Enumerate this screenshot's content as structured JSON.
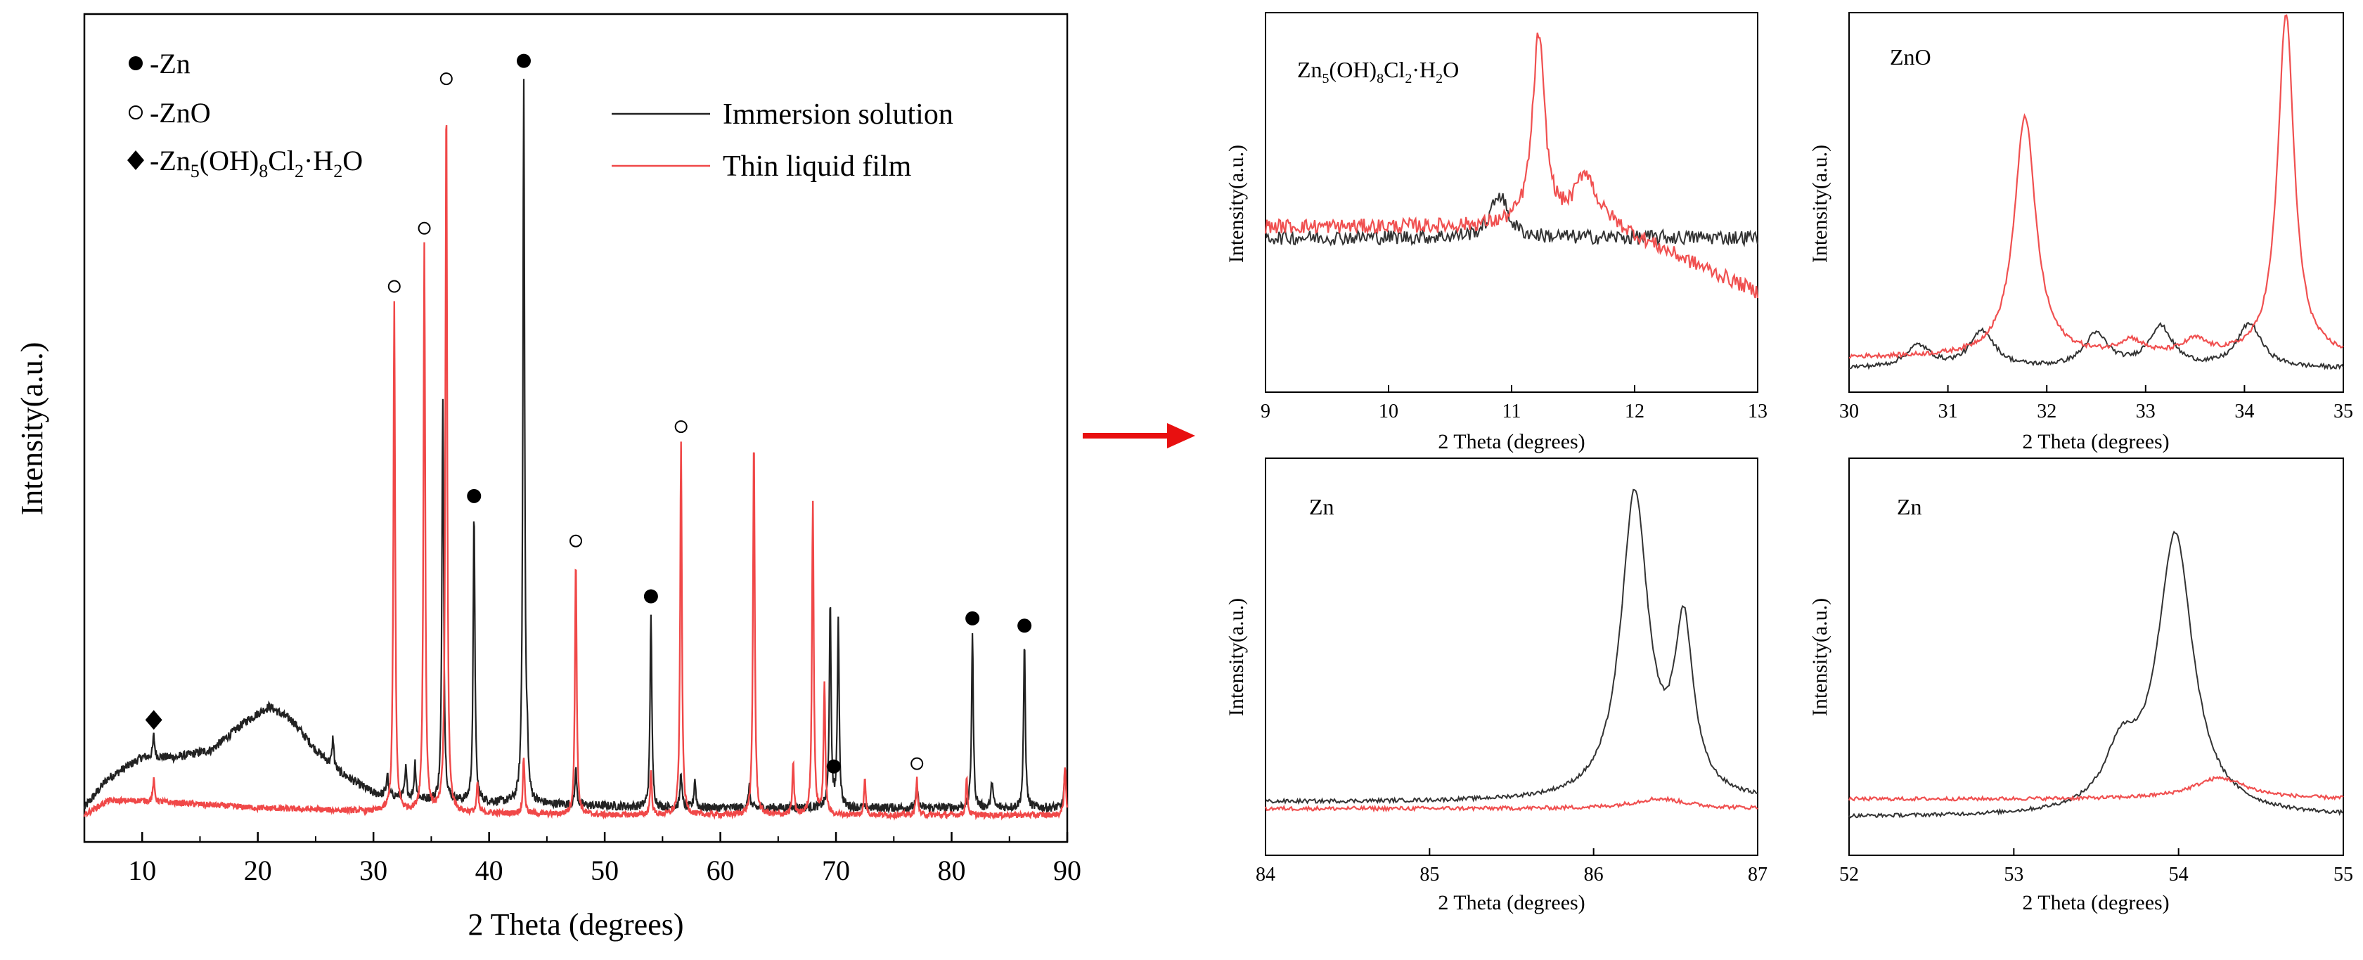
{
  "figure": {
    "arrow_color": "#e81010",
    "series_colors": {
      "immersion": "#222222",
      "film": "#f04848"
    }
  },
  "main": {
    "xlabel": "2 Theta (degrees)",
    "ylabel": "Intensity(a.u.)",
    "xlim": [
      5,
      90
    ],
    "xticks": [
      "10",
      "20",
      "30",
      "40",
      "50",
      "60",
      "70",
      "80",
      "90"
    ],
    "legend": [
      {
        "name": "Immersion solution",
        "color": "#222222"
      },
      {
        "name": "Thin liquid film",
        "color": "#f04848"
      }
    ],
    "marker_legend": [
      {
        "symbol": "filled-circle",
        "label": "-Zn"
      },
      {
        "symbol": "open-circle",
        "label": "-ZnO"
      },
      {
        "symbol": "diamond",
        "label_prefix": "-Zn",
        "label_sub1": "5",
        "label_mid": "(OH)",
        "label_sub2": "8",
        "label_mid2": "Cl",
        "label_sub3": "2",
        "label_suffix": "·H",
        "label_sub4": "2",
        "label_end": "O"
      }
    ]
  },
  "panels": {
    "p1": {
      "title_prefix": "Zn",
      "title_sub1": "5",
      "title_mid": "(OH)",
      "title_sub2": "8",
      "title_mid2": "Cl",
      "title_sub3": "2",
      "title_suffix": "·H",
      "title_sub4": "2",
      "title_end": "O",
      "xlabel": "2 Theta (degrees)",
      "ylabel": "Intensity(a.u.)",
      "xticks": [
        "9",
        "10",
        "11",
        "12",
        "13"
      ]
    },
    "p2": {
      "title": "ZnO",
      "xlabel": "2 Theta (degrees)",
      "ylabel": "Intensity(a.u.)",
      "xticks": [
        "30",
        "31",
        "32",
        "33",
        "34",
        "35"
      ]
    },
    "p3": {
      "title": "Zn",
      "xlabel": "2 Theta (degrees)",
      "ylabel": "Intensity(a.u.)",
      "xticks": [
        "84",
        "85",
        "86",
        "87"
      ]
    },
    "p4": {
      "title": "Zn",
      "xlabel": "2 Theta (degrees)",
      "ylabel": "Intensity(a.u.)",
      "xticks": [
        "52",
        "53",
        "54",
        "55"
      ]
    }
  },
  "chart_data": [
    {
      "type": "line",
      "title": "",
      "xlabel": "2 Theta (degrees)",
      "ylabel": "Intensity(a.u.)",
      "xlim": [
        5,
        90
      ],
      "series": [
        {
          "name": "Immersion solution",
          "color": "#222222",
          "baseline": [
            [
              5,
              0.02
            ],
            [
              7,
              0.06
            ],
            [
              10,
              0.09
            ],
            [
              13,
              0.09
            ],
            [
              16,
              0.1
            ],
            [
              19,
              0.14
            ],
            [
              21,
              0.16
            ],
            [
              23,
              0.14
            ],
            [
              25,
              0.1
            ],
            [
              27,
              0.07
            ],
            [
              30,
              0.04
            ],
            [
              35,
              0.03
            ],
            [
              45,
              0.025
            ],
            [
              55,
              0.02
            ],
            [
              65,
              0.02
            ],
            [
              75,
              0.02
            ],
            [
              90,
              0.02
            ]
          ],
          "peaks": [
            [
              11,
              0.03
            ],
            [
              26.5,
              0.04
            ],
            [
              31.2,
              0.03
            ],
            [
              32.8,
              0.04
            ],
            [
              33.6,
              0.05
            ],
            [
              36.0,
              0.56
            ],
            [
              38.7,
              0.4
            ],
            [
              43.0,
              1.0
            ],
            [
              43.3,
              0.05
            ],
            [
              47.5,
              0.05
            ],
            [
              54.0,
              0.27
            ],
            [
              56.6,
              0.05
            ],
            [
              57.8,
              0.04
            ],
            [
              62.5,
              0.03
            ],
            [
              69.5,
              0.28
            ],
            [
              70.2,
              0.26
            ],
            [
              77.0,
              0.03
            ],
            [
              81.8,
              0.24
            ],
            [
              83.5,
              0.04
            ],
            [
              86.3,
              0.23
            ],
            [
              89.8,
              0.05
            ]
          ]
        },
        {
          "name": "Thin liquid film",
          "color": "#f04848",
          "baseline": [
            [
              5,
              0.01
            ],
            [
              7,
              0.03
            ],
            [
              10,
              0.03
            ],
            [
              15,
              0.025
            ],
            [
              20,
              0.02
            ],
            [
              30,
              0.015
            ],
            [
              50,
              0.01
            ],
            [
              70,
              0.01
            ],
            [
              90,
              0.01
            ]
          ],
          "peaks": [
            [
              11,
              0.03
            ],
            [
              31.8,
              0.71
            ],
            [
              34.4,
              0.79
            ],
            [
              36.3,
              1.0
            ],
            [
              39.0,
              0.04
            ],
            [
              43.0,
              0.08
            ],
            [
              47.5,
              0.36
            ],
            [
              54.0,
              0.06
            ],
            [
              56.6,
              0.52
            ],
            [
              62.9,
              0.53
            ],
            [
              66.3,
              0.07
            ],
            [
              68.0,
              0.44
            ],
            [
              69.0,
              0.18
            ],
            [
              72.5,
              0.05
            ],
            [
              77.0,
              0.05
            ],
            [
              81.3,
              0.05
            ],
            [
              89.8,
              0.07
            ]
          ]
        }
      ],
      "annotations": [
        {
          "marker": "diamond",
          "x": 11,
          "label": "Zn5(OH)8Cl2·H2O"
        },
        {
          "marker": "open-circle",
          "x": 31.8,
          "label": "ZnO"
        },
        {
          "marker": "open-circle",
          "x": 34.4,
          "label": "ZnO"
        },
        {
          "marker": "open-circle",
          "x": 36.3,
          "label": "ZnO"
        },
        {
          "marker": "filled-circle",
          "x": 38.7,
          "label": "Zn"
        },
        {
          "marker": "filled-circle",
          "x": 43.0,
          "label": "Zn"
        },
        {
          "marker": "open-circle",
          "x": 47.5,
          "label": "ZnO"
        },
        {
          "marker": "filled-circle",
          "x": 54.0,
          "label": "Zn"
        },
        {
          "marker": "open-circle",
          "x": 56.6,
          "label": "ZnO"
        },
        {
          "marker": "filled-circle",
          "x": 69.8,
          "label": "Zn"
        },
        {
          "marker": "open-circle",
          "x": 77.0,
          "label": "ZnO"
        },
        {
          "marker": "filled-circle",
          "x": 81.8,
          "label": "Zn"
        },
        {
          "marker": "filled-circle",
          "x": 86.3,
          "label": "Zn"
        }
      ]
    },
    {
      "type": "line",
      "title": "Zn5(OH)8Cl2·H2O",
      "xlabel": "2 Theta (degrees)",
      "ylabel": "Intensity(a.u.)",
      "xlim": [
        9,
        13
      ],
      "series": [
        {
          "name": "Immersion solution",
          "baseline": 0.35,
          "noise": 0.04,
          "peaks": [
            [
              10.9,
              0.12,
              0.08
            ]
          ]
        },
        {
          "name": "Thin liquid film",
          "baseline": 0.38,
          "noise": 0.04,
          "slope_after": 11.8,
          "peaks": [
            [
              11.22,
              0.52,
              0.06
            ],
            [
              11.6,
              0.14,
              0.1
            ]
          ]
        }
      ]
    },
    {
      "type": "line",
      "title": "ZnO",
      "xlabel": "2 Theta (degrees)",
      "ylabel": "Intensity(a.u.)",
      "xlim": [
        30,
        35
      ],
      "series": [
        {
          "name": "Immersion solution",
          "baseline": 0.03,
          "peaks": [
            [
              30.7,
              0.06,
              0.15
            ],
            [
              31.35,
              0.1,
              0.15
            ],
            [
              32.5,
              0.09,
              0.15
            ],
            [
              33.15,
              0.11,
              0.15
            ],
            [
              34.05,
              0.12,
              0.15
            ]
          ]
        },
        {
          "name": "Thin liquid film",
          "baseline": 0.06,
          "peaks": [
            [
              31.78,
              0.66,
              0.13
            ],
            [
              32.85,
              0.04,
              0.15
            ],
            [
              33.5,
              0.04,
              0.15
            ],
            [
              34.42,
              0.94,
              0.1
            ]
          ]
        }
      ]
    },
    {
      "type": "line",
      "title": "Zn",
      "xlabel": "2 Theta (degrees)",
      "ylabel": "Intensity(a.u.)",
      "xlim": [
        84,
        87
      ],
      "series": [
        {
          "name": "Immersion solution",
          "baseline": 0.04,
          "peaks": [
            [
              86.25,
              0.92,
              0.1
            ],
            [
              86.55,
              0.5,
              0.07
            ]
          ]
        },
        {
          "name": "Thin liquid film",
          "baseline": 0.02,
          "peaks": [
            [
              86.4,
              0.03,
              0.2
            ]
          ]
        }
      ]
    },
    {
      "type": "line",
      "title": "Zn",
      "xlabel": "2 Theta (degrees)",
      "ylabel": "Intensity(a.u.)",
      "xlim": [
        52,
        55
      ],
      "series": [
        {
          "name": "Immersion solution",
          "baseline": -0.03,
          "peaks": [
            [
              53.98,
              0.92,
              0.13
            ],
            [
              53.65,
              0.18,
              0.12
            ]
          ]
        },
        {
          "name": "Thin liquid film",
          "baseline": 0.03,
          "peaks": [
            [
              54.25,
              0.07,
              0.2
            ]
          ]
        }
      ]
    }
  ]
}
